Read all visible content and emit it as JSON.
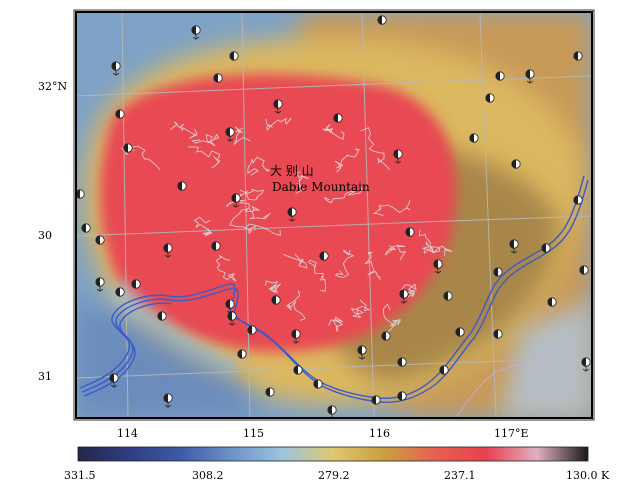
{
  "map": {
    "region_label_cn": "大 别 山",
    "region_label_en": "Dabie Mountain",
    "lat_labels": [
      "32°N",
      "30",
      "31"
    ],
    "lon_labels": [
      "114",
      "115",
      "116",
      "117°E"
    ]
  },
  "colorbar": {
    "ticks": [
      "331.5",
      "308.2",
      "279.2",
      "237.1",
      "130.0 K"
    ],
    "colors": [
      "#24264a",
      "#2e3e80",
      "#3c5aa8",
      "#6c92c8",
      "#9ac4de",
      "#dfc870",
      "#c8a040",
      "#e86050",
      "#e84050",
      "#e0b0c0",
      "#1a1a1a"
    ]
  },
  "colors": {
    "river": "#3a5bc8",
    "border": "#c8a8d8",
    "grid": "#b8b8b8",
    "contour": "#e0e0e0",
    "core": "#e84a52",
    "ring": "#dcb860",
    "brown": "#a8864a",
    "blue": "#7ea2c6"
  }
}
